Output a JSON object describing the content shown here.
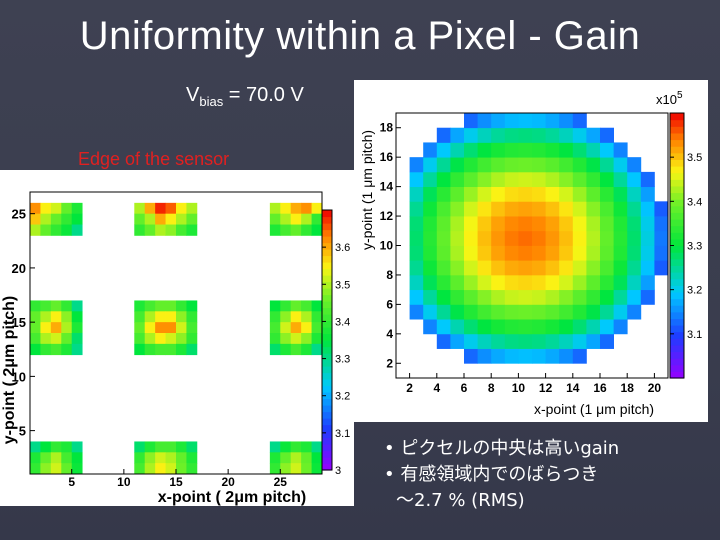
{
  "slide": {
    "title": "Uniformity within a Pixel - Gain",
    "vbias_symbol": "V",
    "vbias_sub": "bias",
    "vbias_value": " = 70.0 V",
    "edge_label": "Edge of the sensor",
    "edge_color": "#e02020",
    "bullets": [
      "• ピクセルの中央は高いgain",
      "• 有感領域内でのばらつき",
      "～2.7 % (RMS)"
    ]
  },
  "chart_data": [
    {
      "type": "heatmap",
      "xlabel": "x-point ( 2μm pitch)",
      "ylabel": "y-point ( 2μm pitch)",
      "xlim": [
        1,
        29
      ],
      "ylim": [
        1,
        27
      ],
      "xticks": [
        "5",
        "10",
        "15",
        "20",
        "25"
      ],
      "yticks": [
        "5",
        "10",
        "15",
        "20",
        "25"
      ],
      "colorbar_ticks": [
        "3",
        "3.1",
        "3.2",
        "3.3",
        "3.4",
        "3.5",
        "3.6"
      ],
      "colorbar_range": [
        3.0,
        3.7
      ],
      "clusters": [
        {
          "x0": 1,
          "y0": 23,
          "values": [
            [
              3.62,
              3.55,
              3.52,
              3.45,
              3.38
            ],
            [
              3.58,
              3.5,
              3.45,
              3.4,
              3.35
            ],
            [
              3.5,
              3.45,
              3.4,
              3.36,
              3.3
            ]
          ]
        },
        {
          "x0": 11,
          "y0": 23,
          "values": [
            [
              3.5,
              3.6,
              3.68,
              3.65,
              3.55,
              3.5
            ],
            [
              3.45,
              3.5,
              3.6,
              3.55,
              3.5,
              3.45
            ],
            [
              3.4,
              3.45,
              3.5,
              3.48,
              3.42,
              3.38
            ]
          ]
        },
        {
          "x0": 24,
          "y0": 23,
          "values": [
            [
              3.5,
              3.55,
              3.6,
              3.62,
              3.55
            ],
            [
              3.45,
              3.5,
              3.55,
              3.5,
              3.4
            ],
            [
              3.38,
              3.42,
              3.45,
              3.4,
              3.35
            ]
          ]
        },
        {
          "x0": 1,
          "y0": 12,
          "values": [
            [
              3.4,
              3.42,
              3.45,
              3.4,
              3.3
            ],
            [
              3.45,
              3.5,
              3.55,
              3.48,
              3.35
            ],
            [
              3.45,
              3.55,
              3.6,
              3.5,
              3.38
            ],
            [
              3.42,
              3.5,
              3.52,
              3.45,
              3.32
            ],
            [
              3.35,
              3.4,
              3.42,
              3.38,
              3.3
            ]
          ]
        },
        {
          "x0": 11,
          "y0": 12,
          "values": [
            [
              3.38,
              3.42,
              3.45,
              3.45,
              3.4,
              3.35
            ],
            [
              3.42,
              3.5,
              3.55,
              3.55,
              3.48,
              3.4
            ],
            [
              3.45,
              3.55,
              3.62,
              3.62,
              3.52,
              3.42
            ],
            [
              3.42,
              3.5,
              3.55,
              3.52,
              3.48,
              3.4
            ],
            [
              3.35,
              3.4,
              3.42,
              3.42,
              3.38,
              3.32
            ]
          ]
        },
        {
          "x0": 24,
          "y0": 12,
          "values": [
            [
              3.35,
              3.4,
              3.45,
              3.42,
              3.35
            ],
            [
              3.4,
              3.48,
              3.55,
              3.5,
              3.4
            ],
            [
              3.42,
              3.52,
              3.6,
              3.55,
              3.42
            ],
            [
              3.4,
              3.48,
              3.52,
              3.48,
              3.38
            ],
            [
              3.32,
              3.38,
              3.42,
              3.38,
              3.3
            ]
          ]
        },
        {
          "x0": 1,
          "y0": 1,
          "values": [
            [
              3.3,
              3.35,
              3.4,
              3.38,
              3.3
            ],
            [
              3.38,
              3.45,
              3.5,
              3.42,
              3.35
            ],
            [
              3.4,
              3.48,
              3.52,
              3.45,
              3.36
            ]
          ]
        },
        {
          "x0": 11,
          "y0": 1,
          "values": [
            [
              3.32,
              3.38,
              3.42,
              3.42,
              3.38,
              3.32
            ],
            [
              3.4,
              3.48,
              3.52,
              3.5,
              3.45,
              3.38
            ],
            [
              3.42,
              3.5,
              3.55,
              3.52,
              3.46,
              3.4
            ]
          ]
        },
        {
          "x0": 24,
          "y0": 1,
          "values": [
            [
              3.3,
              3.36,
              3.4,
              3.38,
              3.3
            ],
            [
              3.38,
              3.45,
              3.5,
              3.45,
              3.35
            ],
            [
              3.4,
              3.48,
              3.52,
              3.46,
              3.36
            ]
          ]
        }
      ]
    },
    {
      "type": "heatmap",
      "xlabel": "x-point (1 μm pitch)",
      "ylabel": "y-point (1 μm pitch)",
      "colorbar_exponent": "x10",
      "colorbar_exponent_sup": "5",
      "xlim": [
        1,
        21
      ],
      "ylim": [
        1,
        19
      ],
      "xticks": [
        "2",
        "4",
        "6",
        "8",
        "10",
        "12",
        "14",
        "16",
        "18",
        "20"
      ],
      "yticks": [
        "2",
        "4",
        "6",
        "8",
        "10",
        "12",
        "14",
        "16",
        "18"
      ],
      "colorbar_ticks": [
        "3.1",
        "3.2",
        "3.3",
        "3.4",
        "3.5"
      ],
      "colorbar_range": [
        3.0,
        3.6
      ],
      "peak": {
        "x": 10.5,
        "y": 10.5,
        "value": 3.55
      },
      "edge_value": 3.1,
      "radius_x": 10.5,
      "radius_y": 9
    }
  ]
}
